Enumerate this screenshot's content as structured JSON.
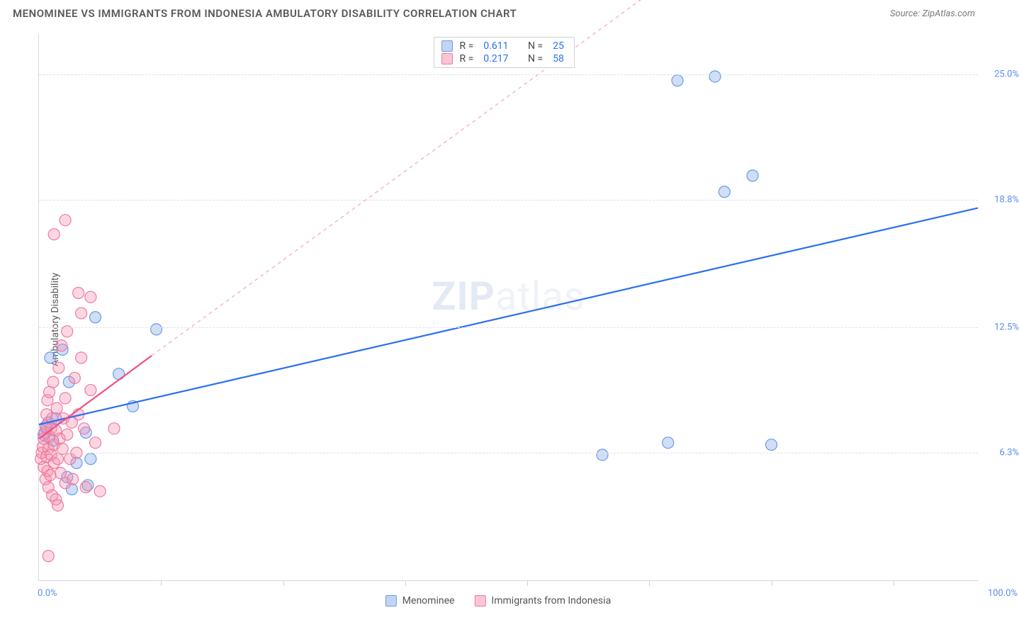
{
  "header": {
    "title": "MENOMINEE VS IMMIGRANTS FROM INDONESIA AMBULATORY DISABILITY CORRELATION CHART",
    "source_label": "Source:",
    "source_value": "ZipAtlas.com"
  },
  "watermark": {
    "bold": "ZIP",
    "rest": "atlas"
  },
  "chart": {
    "type": "scatter",
    "ylabel": "Ambulatory Disability",
    "xlim": [
      0,
      100
    ],
    "ylim": [
      0,
      27
    ],
    "x_axis": {
      "tick_positions": [
        13,
        26,
        39,
        52,
        65,
        78,
        91
      ],
      "left_label": "0.0%",
      "right_label": "100.0%",
      "label_color": "#5b8def"
    },
    "y_axis": {
      "ticks": [
        {
          "v": 6.3,
          "label": "6.3%"
        },
        {
          "v": 12.5,
          "label": "12.5%"
        },
        {
          "v": 18.8,
          "label": "18.8%"
        },
        {
          "v": 25.0,
          "label": "25.0%"
        }
      ],
      "label_color": "#5b8def",
      "grid_color": "#e0e0e0"
    },
    "background_color": "#ffffff",
    "series": [
      {
        "key": "menominee",
        "label": "Menominee",
        "marker_fill": "rgba(120,160,230,0.35)",
        "marker_stroke": "#6a9be8",
        "marker_radius": 8,
        "line_color": "#2b6ef2",
        "line_width": 2.2,
        "line_dash": "",
        "extrapolate_dash": "6,5",
        "extrapolate_color": "rgba(43,110,242,0.35)",
        "stats": {
          "R": "0.611",
          "N": "25"
        },
        "regression": {
          "x1": 0,
          "y1": 7.7,
          "x2": 100,
          "y2": 18.4
        },
        "points": [
          [
            0.5,
            7.2
          ],
          [
            0.8,
            7.5
          ],
          [
            1.0,
            7.8
          ],
          [
            1.2,
            11.0
          ],
          [
            1.5,
            6.9
          ],
          [
            1.8,
            8.0
          ],
          [
            2.5,
            11.4
          ],
          [
            4.0,
            5.8
          ],
          [
            3.2,
            9.8
          ],
          [
            5.0,
            7.3
          ],
          [
            5.5,
            6.0
          ],
          [
            6.0,
            13.0
          ],
          [
            8.5,
            10.2
          ],
          [
            10.0,
            8.6
          ],
          [
            12.5,
            12.4
          ],
          [
            3.5,
            4.5
          ],
          [
            3.0,
            5.1
          ],
          [
            5.2,
            4.7
          ],
          [
            60.0,
            6.2
          ],
          [
            67.0,
            6.8
          ],
          [
            78.0,
            6.7
          ],
          [
            68.0,
            24.7
          ],
          [
            72.0,
            24.9
          ],
          [
            73.0,
            19.2
          ],
          [
            76.0,
            20.0
          ]
        ]
      },
      {
        "key": "indonesia",
        "label": "Immigrants from Indonesia",
        "marker_fill": "rgba(245,140,170,0.35)",
        "marker_stroke": "#ef7aa2",
        "marker_radius": 8,
        "line_color": "#ef4f85",
        "line_width": 2.2,
        "line_dash": "",
        "extrapolate_dash": "5,5",
        "extrapolate_color": "rgba(239,79,133,0.45)",
        "stats": {
          "R": "0.217",
          "N": "58"
        },
        "regression": {
          "x1": 0,
          "y1": 7.0,
          "x2": 12,
          "y2": 11.1
        },
        "extrapolate_to": {
          "x2": 65,
          "y2": 29.0
        },
        "points": [
          [
            0.2,
            6.0
          ],
          [
            0.3,
            6.3
          ],
          [
            0.4,
            6.6
          ],
          [
            0.5,
            5.6
          ],
          [
            0.5,
            7.0
          ],
          [
            0.6,
            7.3
          ],
          [
            0.7,
            5.0
          ],
          [
            0.7,
            7.6
          ],
          [
            0.8,
            6.1
          ],
          [
            0.8,
            8.2
          ],
          [
            0.9,
            5.4
          ],
          [
            0.9,
            8.9
          ],
          [
            1.0,
            6.5
          ],
          [
            1.0,
            4.6
          ],
          [
            1.1,
            7.1
          ],
          [
            1.1,
            9.3
          ],
          [
            1.2,
            5.2
          ],
          [
            1.3,
            7.5
          ],
          [
            1.3,
            6.2
          ],
          [
            1.4,
            4.2
          ],
          [
            1.4,
            8.0
          ],
          [
            1.5,
            9.8
          ],
          [
            1.6,
            6.7
          ],
          [
            1.6,
            5.8
          ],
          [
            1.8,
            7.4
          ],
          [
            1.8,
            4.0
          ],
          [
            1.9,
            8.5
          ],
          [
            2.0,
            6.0
          ],
          [
            2.0,
            3.7
          ],
          [
            2.1,
            10.5
          ],
          [
            2.2,
            7.0
          ],
          [
            2.3,
            5.3
          ],
          [
            2.4,
            11.6
          ],
          [
            2.5,
            6.5
          ],
          [
            2.6,
            8.0
          ],
          [
            2.8,
            4.8
          ],
          [
            2.8,
            9.0
          ],
          [
            3.0,
            7.2
          ],
          [
            3.0,
            12.3
          ],
          [
            3.3,
            6.0
          ],
          [
            3.5,
            7.8
          ],
          [
            3.6,
            5.0
          ],
          [
            3.8,
            10.0
          ],
          [
            4.0,
            6.3
          ],
          [
            4.2,
            8.2
          ],
          [
            4.5,
            11.0
          ],
          [
            4.5,
            13.2
          ],
          [
            4.8,
            7.5
          ],
          [
            5.0,
            4.6
          ],
          [
            5.5,
            9.4
          ],
          [
            6.0,
            6.8
          ],
          [
            6.5,
            4.4
          ],
          [
            1.0,
            1.2
          ],
          [
            1.6,
            17.1
          ],
          [
            2.8,
            17.8
          ],
          [
            4.2,
            14.2
          ],
          [
            5.5,
            14.0
          ],
          [
            8.0,
            7.5
          ]
        ]
      }
    ],
    "legend_top": {
      "swatch_blue_fill": "rgba(120,160,230,0.45)",
      "swatch_blue_stroke": "#6a9be8",
      "swatch_pink_fill": "rgba(245,140,170,0.5)",
      "swatch_pink_stroke": "#ef7aa2",
      "r_label": "R =",
      "n_label": "N ="
    }
  }
}
